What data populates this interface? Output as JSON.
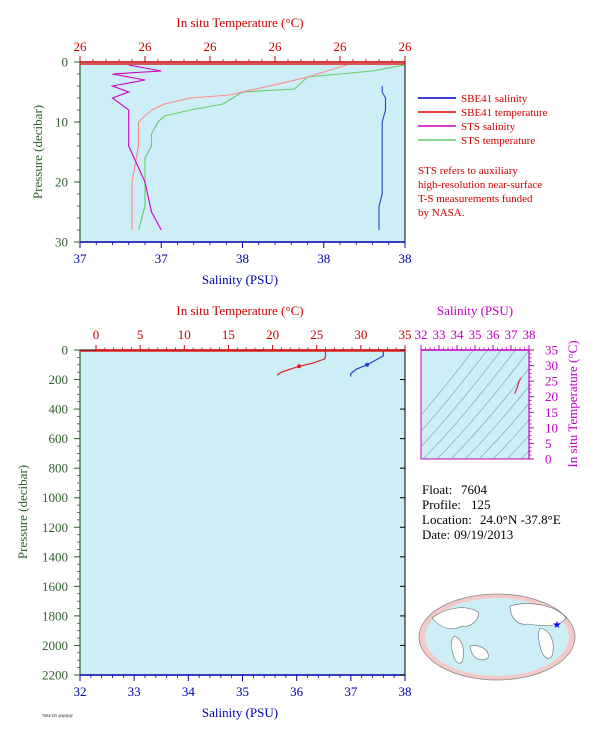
{
  "colors": {
    "plot_bg": "#cdeef7",
    "temp_axis": "#cc0000",
    "sal_axis": "#0000aa",
    "pressure_axis": "#2f5f2f",
    "ts_axis": "#c000c0",
    "sbe41_salinity": "#2244cc",
    "sbe41_temperature": "#dd2222",
    "sts_salinity": "#cc00cc",
    "sts_temperature": "#66cc66",
    "sts_temperature_warm": "#ff8888",
    "note": "#cc0000"
  },
  "top": {
    "temp_title": "In situ Temperature (°C)",
    "sal_title": "Salinity (PSU)",
    "ylabel": "Pressure (decibar)",
    "temp_ticks": [
      "26",
      "26",
      "26",
      "26",
      "26",
      "26"
    ],
    "sal_ticks": [
      "37",
      "37",
      "38",
      "38",
      "38"
    ],
    "p_ticks": [
      "0",
      "10",
      "20",
      "30"
    ],
    "legend": [
      {
        "label": "SBE41 salinity",
        "color": "#0000cc"
      },
      {
        "label": "SBE41 temperature",
        "color": "#dd0000"
      },
      {
        "label": "STS salinity",
        "color": "#cc00cc"
      },
      {
        "label": "STS temperature",
        "color": "#66cc66"
      }
    ],
    "note_lines": [
      "STS refers to auxiliary",
      "high-resolution near-surface",
      "T-S measurements funded",
      "by NASA."
    ]
  },
  "bottom": {
    "temp_title": "In situ Temperature (°C)",
    "sal_title": "Salinity (PSU)",
    "ylabel": "Pressure (decibar)",
    "temp_ticks": [
      "0",
      "5",
      "10",
      "15",
      "20",
      "25",
      "30",
      "35"
    ],
    "sal_ticks": [
      "32",
      "33",
      "34",
      "35",
      "36",
      "37",
      "38"
    ],
    "p_ticks": [
      "0",
      "200",
      "400",
      "600",
      "800",
      "1000",
      "1200",
      "1400",
      "1600",
      "1800",
      "2000",
      "2200"
    ]
  },
  "ts": {
    "sal_title": "Salinity (PSU)",
    "temp_title": "In situ Temperature (°C)",
    "sal_ticks": [
      "32",
      "33",
      "34",
      "35",
      "36",
      "37",
      "38"
    ],
    "temp_ticks": [
      "0",
      "5",
      "10",
      "15",
      "20",
      "25",
      "30",
      "35"
    ]
  },
  "info": {
    "float_label": "Float:",
    "float": "7604",
    "profile_label": "Profile:",
    "profile": "125",
    "location_label": "Location:",
    "location": "24.0°N  -37.8°E",
    "date_label": "Date:",
    "date": "09/19/2013"
  },
  "footer": "7604/125 @@@@",
  "chart_data": [
    {
      "type": "line",
      "title": "",
      "x_top_label": "In situ Temperature (°C)",
      "x_bottom_label": "Salinity (PSU)",
      "ylabel": "Pressure (decibar)",
      "temp_lim": [
        25.95,
        26.45
      ],
      "sal_lim": [
        37.0,
        38.0
      ],
      "ylim": [
        30,
        0
      ],
      "series": [
        {
          "name": "SBE41 salinity",
          "axis": "sal",
          "x": [
            37.93,
            37.93,
            37.94,
            37.94,
            37.93,
            37.93,
            37.93,
            37.93,
            37.93,
            37.93,
            37.93,
            37.92,
            37.92,
            37.92
          ],
          "y": [
            4,
            5,
            6,
            8,
            10,
            12,
            14,
            16,
            18,
            20,
            22,
            24,
            26,
            28
          ]
        },
        {
          "name": "STS temperature",
          "axis": "temp",
          "x": [
            26.45,
            26.4,
            26.3,
            26.28,
            26.2,
            26.17,
            26.12,
            26.08,
            26.07,
            26.06,
            26.06,
            26.05,
            26.05,
            26.05,
            26.04
          ],
          "y": [
            0.5,
            1.5,
            2.5,
            4.5,
            5.0,
            7.0,
            8.0,
            9.0,
            10,
            12,
            14,
            16,
            20,
            24,
            28
          ]
        },
        {
          "name": "STS temperature (warm trace)",
          "axis": "temp",
          "x": [
            26.36,
            26.3,
            26.25,
            26.22,
            26.18,
            26.12,
            26.08,
            26.06,
            26.05,
            26.04,
            26.04,
            26.03,
            26.03
          ],
          "y": [
            0.5,
            2.5,
            3.8,
            4.5,
            5.5,
            6.0,
            7.0,
            8.0,
            9.0,
            10,
            14,
            20,
            28
          ]
        },
        {
          "name": "STS salinity",
          "axis": "sal",
          "x": [
            37.15,
            37.25,
            37.1,
            37.2,
            37.1,
            37.15,
            37.1,
            37.15,
            37.15,
            37.15,
            37.2,
            37.22,
            37.25
          ],
          "y": [
            0.5,
            1.5,
            2.0,
            3.0,
            4.0,
            5.0,
            6.0,
            8.0,
            10,
            14,
            20,
            25,
            28
          ]
        }
      ]
    },
    {
      "type": "line",
      "title": "",
      "x_top_label": "In situ Temperature (°C)",
      "x_bottom_label": "Salinity (PSU)",
      "ylabel": "Pressure (decibar)",
      "temp_lim": [
        0,
        35
      ],
      "sal_lim": [
        32,
        38
      ],
      "ylim": [
        2200,
        0
      ],
      "series": [
        {
          "name": "SBE41 temperature",
          "axis": "temp",
          "x": [
            26.0,
            26.0,
            25.9,
            24.5,
            23.0,
            22.0,
            21.0,
            20.5
          ],
          "y": [
            0,
            40,
            60,
            90,
            110,
            130,
            150,
            170
          ]
        },
        {
          "name": "SBE41 salinity",
          "axis": "sal",
          "x": [
            37.6,
            37.6,
            37.5,
            37.3,
            37.1,
            37.0,
            37.0
          ],
          "y": [
            0,
            40,
            60,
            100,
            130,
            160,
            180
          ]
        }
      ]
    },
    {
      "type": "line",
      "title": "",
      "xlabel": "Salinity (PSU)",
      "ylabel": "In situ Temperature (°C)",
      "xlim": [
        32,
        38
      ],
      "ylim": [
        0,
        35
      ],
      "series": [
        {
          "name": "T-S",
          "x": [
            37.55,
            37.45,
            37.35,
            37.2
          ],
          "y": [
            26,
            25,
            23,
            21
          ]
        }
      ]
    }
  ]
}
